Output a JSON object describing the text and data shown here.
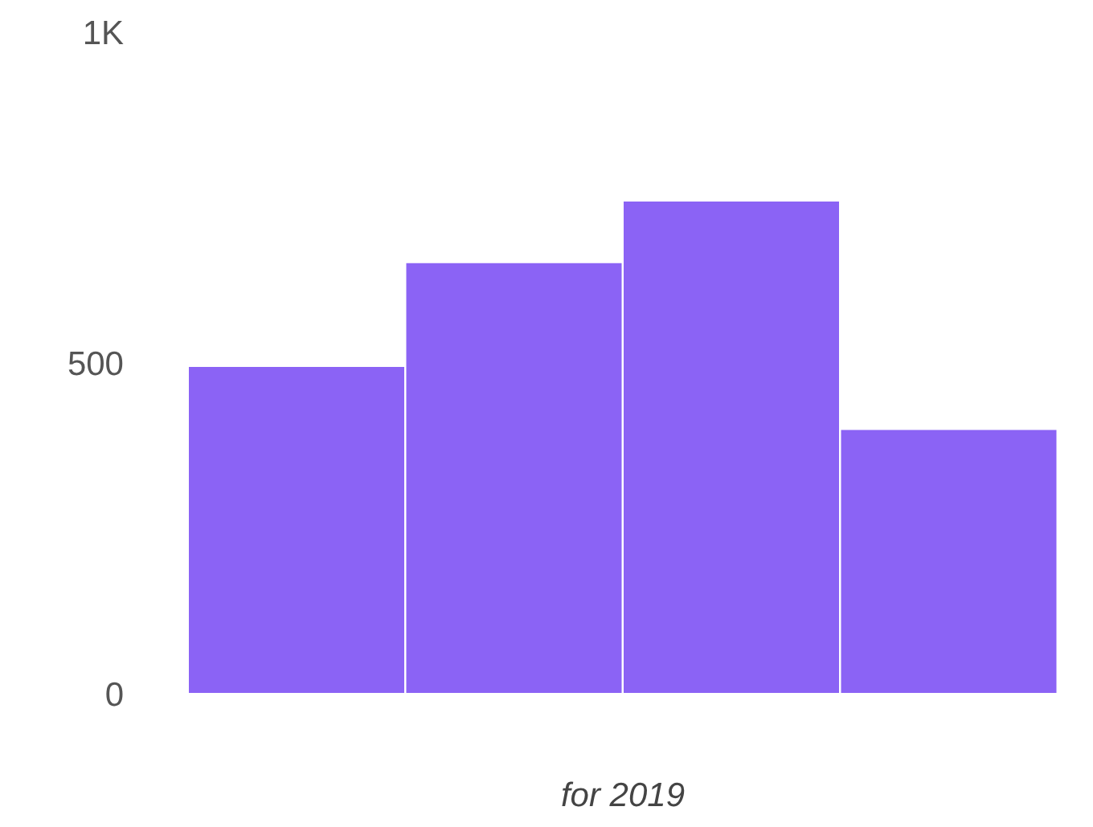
{
  "chart_data": {
    "type": "bar",
    "xlabel": "for 2019",
    "categories": [
      null,
      null,
      null,
      null
    ],
    "values": [
      495,
      652,
      745,
      400
    ],
    "color": "#8b63f5",
    "ylim": [
      0,
      1000
    ],
    "yticks": [
      0,
      500,
      {
        "value": 1000,
        "label": "1K"
      }
    ],
    "grid": false,
    "tick_labels": "y"
  }
}
